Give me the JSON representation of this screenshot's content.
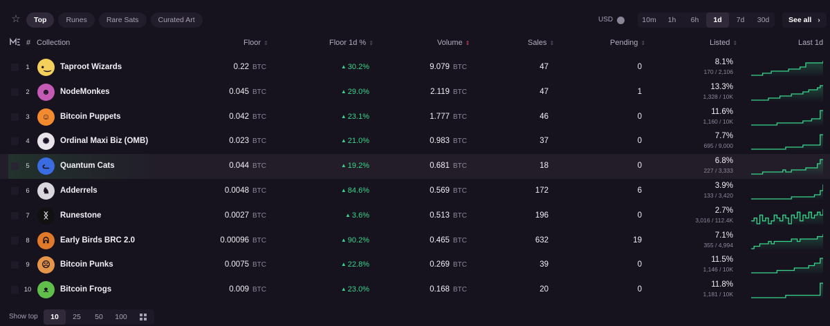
{
  "tabs": [
    {
      "label": "Top",
      "active": true
    },
    {
      "label": "Runes",
      "active": false
    },
    {
      "label": "Rare Sats",
      "active": false
    },
    {
      "label": "Curated Art",
      "active": false
    }
  ],
  "currency_label": "USD",
  "timeframes": [
    {
      "label": "10m",
      "active": false
    },
    {
      "label": "1h",
      "active": false
    },
    {
      "label": "6h",
      "active": false
    },
    {
      "label": "1d",
      "active": true
    },
    {
      "label": "7d",
      "active": false
    },
    {
      "label": "30d",
      "active": false
    }
  ],
  "see_all_label": "See all",
  "see_all_chevron": "›",
  "columns": {
    "hash": "#",
    "collection": "Collection",
    "floor": "Floor",
    "floor_pct": "Floor 1d %",
    "volume": "Volume",
    "sales": "Sales",
    "pending": "Pending",
    "listed": "Listed",
    "last": "Last 1d"
  },
  "rows": [
    {
      "rank": "1",
      "name": "Taproot Wizards",
      "floor": "0.22",
      "floor_unit": "BTC",
      "pct": "30.2%",
      "volume": "9.079",
      "volume_unit": "BTC",
      "sales": "47",
      "pending": "0",
      "listed_pct": "8.1%",
      "listed_sub": "170 / 2,106",
      "avatar_color": "#f3cf5b",
      "avatar_glyph": "•‿",
      "spark": [
        3,
        3,
        3,
        3,
        4,
        4,
        4,
        5,
        5,
        5,
        5,
        5,
        5,
        6,
        6,
        6,
        6,
        7,
        7,
        9,
        9,
        9,
        9,
        9,
        9,
        10
      ]
    },
    {
      "rank": "2",
      "name": "NodeMonkes",
      "floor": "0.045",
      "floor_unit": "BTC",
      "pct": "29.0%",
      "volume": "2.119",
      "volume_unit": "BTC",
      "sales": "47",
      "pending": "1",
      "listed_pct": "13.3%",
      "listed_sub": "1,328 / 10K",
      "avatar_color": "#c35ab4",
      "avatar_glyph": "☻",
      "spark": [
        2,
        2,
        2,
        2,
        2,
        2,
        3,
        3,
        3,
        3,
        4,
        4,
        4,
        4,
        5,
        5,
        5,
        5,
        6,
        6,
        7,
        7,
        7,
        8,
        9,
        9
      ]
    },
    {
      "rank": "3",
      "name": "Bitcoin Puppets",
      "floor": "0.042",
      "floor_unit": "BTC",
      "pct": "23.1%",
      "volume": "1.777",
      "volume_unit": "BTC",
      "sales": "46",
      "pending": "0",
      "listed_pct": "11.6%",
      "listed_sub": "1,160 / 10K",
      "avatar_color": "#f28b2f",
      "avatar_glyph": "☺",
      "spark": [
        2,
        2,
        2,
        2,
        2,
        2,
        2,
        2,
        2,
        3,
        3,
        3,
        3,
        3,
        3,
        3,
        3,
        3,
        4,
        4,
        4,
        5,
        5,
        5,
        9,
        9
      ]
    },
    {
      "rank": "4",
      "name": "Ordinal Maxi Biz (OMB)",
      "floor": "0.023",
      "floor_unit": "BTC",
      "pct": "21.0%",
      "volume": "0.983",
      "volume_unit": "BTC",
      "sales": "37",
      "pending": "0",
      "listed_pct": "7.7%",
      "listed_sub": "695 / 9,000",
      "avatar_color": "#e8e4ea",
      "avatar_glyph": "✺",
      "spark": [
        2,
        2,
        2,
        2,
        2,
        2,
        2,
        2,
        2,
        2,
        2,
        2,
        3,
        3,
        3,
        3,
        3,
        3,
        4,
        4,
        4,
        4,
        4,
        4,
        9,
        9
      ]
    },
    {
      "rank": "5",
      "name": "Quantum Cats",
      "floor": "0.044",
      "floor_unit": "BTC",
      "pct": "19.2%",
      "volume": "0.681",
      "volume_unit": "BTC",
      "sales": "18",
      "pending": "0",
      "listed_pct": "6.8%",
      "listed_sub": "227 / 3,333",
      "avatar_color": "#3a6be0",
      "avatar_glyph": "ᓚ",
      "highlight": true,
      "spark": [
        2,
        2,
        2,
        2,
        3,
        3,
        3,
        3,
        3,
        3,
        3,
        4,
        3,
        3,
        4,
        4,
        4,
        4,
        4,
        5,
        5,
        5,
        5,
        7,
        9,
        9
      ]
    },
    {
      "rank": "6",
      "name": "Adderrels",
      "floor": "0.0048",
      "floor_unit": "BTC",
      "pct": "84.6%",
      "volume": "0.569",
      "volume_unit": "BTC",
      "sales": "172",
      "pending": "6",
      "listed_pct": "3.9%",
      "listed_sub": "133 / 3,420",
      "avatar_color": "#d9d6dd",
      "avatar_glyph": "♞",
      "spark": [
        2,
        2,
        2,
        2,
        2,
        2,
        2,
        2,
        2,
        2,
        2,
        2,
        2,
        2,
        3,
        3,
        3,
        3,
        3,
        3,
        3,
        3,
        4,
        4,
        6,
        9
      ]
    },
    {
      "rank": "7",
      "name": "Runestone",
      "floor": "0.0027",
      "floor_unit": "BTC",
      "pct": "3.6%",
      "volume": "0.513",
      "volume_unit": "BTC",
      "sales": "196",
      "pending": "0",
      "listed_pct": "2.7%",
      "listed_sub": "3,016 / 112.4K",
      "avatar_color": "#111111",
      "avatar_glyph": "ᛝ",
      "spark": [
        4,
        5,
        3,
        6,
        4,
        5,
        3,
        4,
        6,
        5,
        4,
        6,
        5,
        3,
        6,
        5,
        7,
        4,
        6,
        5,
        7,
        5,
        6,
        7,
        6,
        8
      ]
    },
    {
      "rank": "8",
      "name": "Early Birds BRC 2.0",
      "floor": "0.00096",
      "floor_unit": "BTC",
      "pct": "90.2%",
      "volume": "0.465",
      "volume_unit": "BTC",
      "sales": "632",
      "pending": "19",
      "listed_pct": "7.1%",
      "listed_sub": "355 / 4,994",
      "avatar_color": "#e07a2a",
      "avatar_glyph": "ᕱ",
      "spark": [
        3,
        4,
        4,
        5,
        5,
        5,
        6,
        5,
        6,
        6,
        6,
        6,
        6,
        6,
        7,
        7,
        6,
        7,
        7,
        7,
        7,
        7,
        7,
        8,
        8,
        9
      ]
    },
    {
      "rank": "9",
      "name": "Bitcoin Punks",
      "floor": "0.0075",
      "floor_unit": "BTC",
      "pct": "22.8%",
      "volume": "0.269",
      "volume_unit": "BTC",
      "sales": "39",
      "pending": "0",
      "listed_pct": "11.5%",
      "listed_sub": "1,146 / 10K",
      "avatar_color": "#e5954a",
      "avatar_glyph": "☹",
      "spark": [
        2,
        2,
        2,
        2,
        2,
        2,
        2,
        2,
        2,
        3,
        3,
        3,
        3,
        3,
        3,
        4,
        4,
        4,
        4,
        4,
        5,
        5,
        6,
        6,
        8,
        8
      ]
    },
    {
      "rank": "10",
      "name": "Bitcoin Frogs",
      "floor": "0.009",
      "floor_unit": "BTC",
      "pct": "23.0%",
      "volume": "0.168",
      "volume_unit": "BTC",
      "sales": "20",
      "pending": "0",
      "listed_pct": "11.8%",
      "listed_sub": "1,181 / 10K",
      "avatar_color": "#5fbf4a",
      "avatar_glyph": "ᴥ",
      "spark": [
        2,
        2,
        2,
        2,
        2,
        2,
        2,
        2,
        2,
        2,
        2,
        2,
        3,
        3,
        3,
        3,
        3,
        3,
        3,
        3,
        3,
        3,
        3,
        3,
        8,
        8
      ]
    }
  ],
  "footer": {
    "show_top_label": "Show top",
    "page_sizes": [
      {
        "label": "10",
        "active": true
      },
      {
        "label": "25",
        "active": false
      },
      {
        "label": "50",
        "active": false
      },
      {
        "label": "100",
        "active": false
      }
    ]
  },
  "colors": {
    "accent_green": "#39d68b",
    "sort_active": "#e0455a",
    "background": "#16121e"
  },
  "icons": [
    "star-icon",
    "magic-eden-logo-icon",
    "sort-icon",
    "up-triangle-icon",
    "chevron-right-icon",
    "grid-view-icon"
  ]
}
